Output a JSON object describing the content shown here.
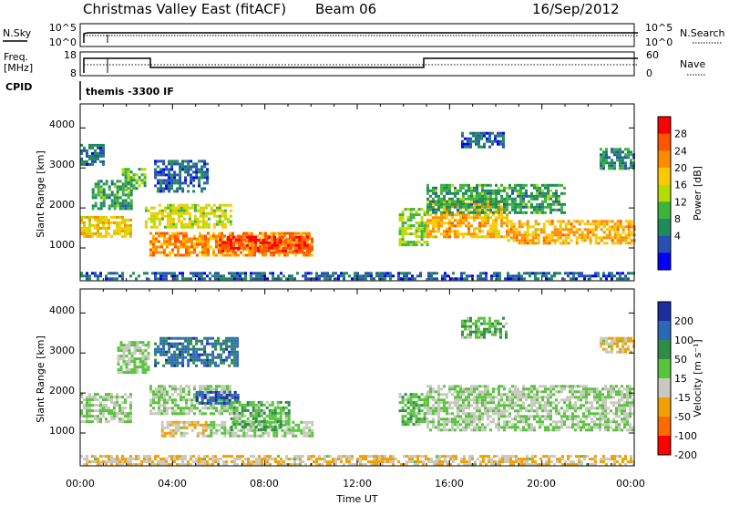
{
  "header": {
    "title": "Christmas Valley East (fitACF)",
    "beam": "Beam 06",
    "date": "16/Sep/2012"
  },
  "top_panels": {
    "nsky_label": "N.Sky",
    "nsearch_label": "N.Search",
    "noise_ticks_left": [
      "10^5",
      "10^0"
    ],
    "noise_ticks_right": [
      "10^5",
      "10^0"
    ],
    "freq_label_1": "Freq.",
    "freq_label_2": "[MHz]",
    "freq_ticks": [
      "18",
      "8"
    ],
    "nave_label": "Nave",
    "nave_ticks": [
      "60",
      "0"
    ],
    "cpid_label": "CPID",
    "cpid_text": "themis -3300 IF"
  },
  "power_colorbar": {
    "label": "Power [dB]",
    "ticks": [
      "28",
      "24",
      "20",
      "16",
      "12",
      "8",
      "4"
    ],
    "colors": [
      "#ff0000",
      "#ff5500",
      "#ff8c00",
      "#ffc800",
      "#b4dc00",
      "#3cb43c",
      "#1e8c5a",
      "#2850b4",
      "#0000ff"
    ]
  },
  "velocity_colorbar": {
    "label": "Velocity [m s⁻¹]",
    "ticks": [
      "200",
      "100",
      "50",
      "15",
      "-15",
      "-50",
      "-100",
      "-200"
    ],
    "colors": [
      "#1c2ea0",
      "#2a68b8",
      "#2e8c46",
      "#58c43c",
      "#c8c8c0",
      "#f0a000",
      "#ff6a00",
      "#ff0000"
    ]
  },
  "axes": {
    "ylabel": "Slant Range [km]",
    "yticks": [
      "4000",
      "3000",
      "2000",
      "1000"
    ],
    "xlabel": "Time UT",
    "xticks": [
      "00:00",
      "04:00",
      "08:00",
      "12:00",
      "16:00",
      "20:00",
      "00:00"
    ]
  },
  "chart_data": [
    {
      "type": "heatmap",
      "title": "Power",
      "xlabel": "Time UT",
      "ylabel": "Slant Range [km]",
      "xlim": [
        0,
        24
      ],
      "ylim": [
        180,
        4600
      ],
      "colorbar_range": [
        0,
        30
      ],
      "colorbar_label": "Power [dB]",
      "bands": [
        {
          "x0": 0.0,
          "x1": 2.2,
          "range": [
            1300,
            1800
          ],
          "value": 18
        },
        {
          "x0": 0.5,
          "x1": 2.2,
          "range": [
            2000,
            2700
          ],
          "value": 10
        },
        {
          "x0": 0.0,
          "x1": 1.0,
          "range": [
            3100,
            3600
          ],
          "value": 6
        },
        {
          "x0": 1.8,
          "x1": 2.8,
          "range": [
            2500,
            3000
          ],
          "value": 12
        },
        {
          "x0": 2.8,
          "x1": 6.5,
          "range": [
            1500,
            2100
          ],
          "value": 16
        },
        {
          "x0": 3.2,
          "x1": 5.5,
          "range": [
            2400,
            3200
          ],
          "value": 6
        },
        {
          "x0": 3.0,
          "x1": 10.0,
          "range": [
            850,
            1400
          ],
          "value": 22
        },
        {
          "x0": 6.0,
          "x1": 10.0,
          "range": [
            900,
            1300
          ],
          "value": 26
        },
        {
          "x0": 13.8,
          "x1": 15.0,
          "range": [
            1100,
            2000
          ],
          "value": 14
        },
        {
          "x0": 15.0,
          "x1": 18.5,
          "range": [
            1300,
            2200
          ],
          "value": 20
        },
        {
          "x0": 18.5,
          "x1": 24.0,
          "range": [
            1100,
            1700
          ],
          "value": 20
        },
        {
          "x0": 15.0,
          "x1": 21.0,
          "range": [
            1900,
            2600
          ],
          "value": 10
        },
        {
          "x0": 16.5,
          "x1": 18.3,
          "range": [
            3500,
            3900
          ],
          "value": 6
        },
        {
          "x0": 22.5,
          "x1": 24.0,
          "range": [
            3000,
            3500
          ],
          "value": 8
        },
        {
          "x0": 0.0,
          "x1": 24.0,
          "range": [
            200,
            400
          ],
          "value": 6
        }
      ]
    },
    {
      "type": "heatmap",
      "title": "Velocity",
      "xlabel": "Time UT",
      "ylabel": "Slant Range [km]",
      "xlim": [
        0,
        24
      ],
      "ylim": [
        180,
        4600
      ],
      "colorbar_range": [
        -250,
        250
      ],
      "colorbar_label": "Velocity [m s⁻¹]",
      "bands": [
        {
          "x0": 0.0,
          "x1": 2.2,
          "range": [
            1300,
            2000
          ],
          "value": 0
        },
        {
          "x0": 1.6,
          "x1": 3.0,
          "range": [
            2500,
            3300
          ],
          "value": 0
        },
        {
          "x0": 3.0,
          "x1": 6.5,
          "range": [
            1500,
            2200
          ],
          "value": 0
        },
        {
          "x0": 5.0,
          "x1": 6.8,
          "range": [
            1750,
            2050
          ],
          "value": 180
        },
        {
          "x0": 3.5,
          "x1": 5.5,
          "range": [
            900,
            1300
          ],
          "value": -60
        },
        {
          "x0": 5.5,
          "x1": 10.0,
          "range": [
            900,
            1300
          ],
          "value": 0
        },
        {
          "x0": 6.5,
          "x1": 9.0,
          "range": [
            1100,
            1800
          ],
          "value": 40
        },
        {
          "x0": 3.2,
          "x1": 6.8,
          "range": [
            2700,
            3400
          ],
          "value": 140
        },
        {
          "x0": 13.8,
          "x1": 15.0,
          "range": [
            1200,
            2000
          ],
          "value": 40
        },
        {
          "x0": 15.0,
          "x1": 24.0,
          "range": [
            1100,
            2200
          ],
          "value": 0
        },
        {
          "x0": 16.5,
          "x1": 18.5,
          "range": [
            3400,
            3900
          ],
          "value": 40
        },
        {
          "x0": 22.5,
          "x1": 24.0,
          "range": [
            3000,
            3400
          ],
          "value": -60
        },
        {
          "x0": 0.0,
          "x1": 24.0,
          "range": [
            200,
            450
          ],
          "value": -60
        }
      ]
    }
  ]
}
